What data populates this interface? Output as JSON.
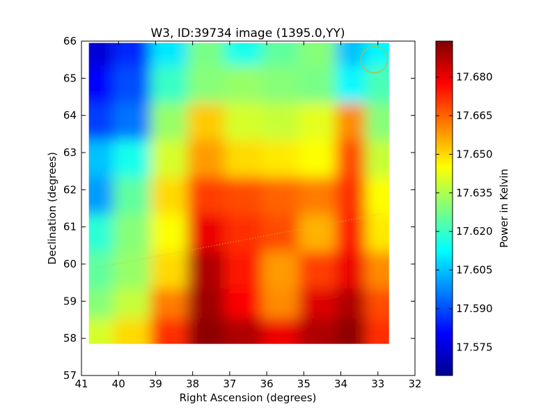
{
  "chart_data": {
    "type": "heatmap",
    "title": "W3, ID:39734 image (1395.0,YY)",
    "xlabel": "Right Ascension (degrees)",
    "ylabel": "Declination (degrees)",
    "xlim": [
      41,
      32
    ],
    "ylim": [
      57,
      66
    ],
    "x_ticks": [
      41,
      40,
      39,
      38,
      37,
      36,
      35,
      34,
      33,
      32
    ],
    "y_ticks": [
      57,
      58,
      59,
      60,
      61,
      62,
      63,
      64,
      65,
      66
    ],
    "image_extent": {
      "x": [
        40.8,
        32.7
      ],
      "y": [
        57.85,
        65.95
      ]
    },
    "colormap": "jet",
    "colorbar": {
      "label": "Power in Kelvin",
      "range": [
        17.564,
        17.694
      ],
      "ticks": [
        "17.575",
        "17.590",
        "17.605",
        "17.620",
        "17.635",
        "17.650",
        "17.665",
        "17.680"
      ]
    },
    "grid_ra": [
      40.6,
      39.6,
      38.6,
      37.6,
      36.6,
      35.6,
      34.6,
      33.6,
      32.8
    ],
    "grid_dec": [
      65.8,
      64.8,
      63.8,
      62.8,
      61.8,
      60.8,
      59.8,
      58.8,
      58.0
    ],
    "values": [
      [
        17.575,
        17.585,
        17.61,
        17.628,
        17.615,
        17.625,
        17.63,
        17.605,
        17.612
      ],
      [
        17.58,
        17.59,
        17.62,
        17.63,
        17.632,
        17.63,
        17.628,
        17.612,
        17.622
      ],
      [
        17.588,
        17.595,
        17.632,
        17.652,
        17.64,
        17.638,
        17.642,
        17.66,
        17.63
      ],
      [
        17.605,
        17.615,
        17.64,
        17.658,
        17.65,
        17.648,
        17.645,
        17.668,
        17.638
      ],
      [
        17.6,
        17.625,
        17.65,
        17.67,
        17.668,
        17.665,
        17.662,
        17.672,
        17.645
      ],
      [
        17.618,
        17.63,
        17.645,
        17.68,
        17.672,
        17.668,
        17.655,
        17.675,
        17.648
      ],
      [
        17.625,
        17.632,
        17.65,
        17.688,
        17.675,
        17.658,
        17.67,
        17.68,
        17.66
      ],
      [
        17.63,
        17.638,
        17.662,
        17.69,
        17.678,
        17.66,
        17.682,
        17.688,
        17.668
      ],
      [
        17.64,
        17.65,
        17.672,
        17.692,
        17.688,
        17.68,
        17.688,
        17.692,
        17.672
      ]
    ],
    "annotations": {
      "circle": {
        "ra": 33.1,
        "dec": 65.5,
        "color": "#c8b43c"
      },
      "dotted_line": {
        "from": [
          40.6,
          59.9
        ],
        "to": [
          32.9,
          61.35
        ],
        "color": "#b4c850"
      }
    }
  }
}
